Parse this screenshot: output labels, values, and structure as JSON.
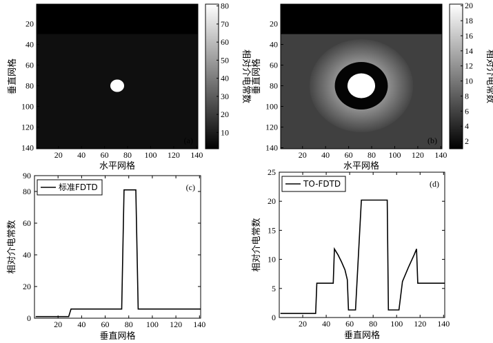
{
  "chart_data": [
    {
      "id": "a",
      "type": "heatmap",
      "panel_label": "(a)",
      "xlabel": "水平网格",
      "ylabel": "垂直网格",
      "colorbar_label": "相对介电常数",
      "xticks": [
        20,
        40,
        60,
        80,
        100,
        120,
        140
      ],
      "yticks": [
        20,
        40,
        60,
        80,
        100,
        120,
        140
      ],
      "xlim": [
        1,
        141
      ],
      "ylim": [
        1,
        141
      ],
      "clim": [
        1,
        81
      ],
      "colorbar_ticks": [
        10,
        20,
        30,
        40,
        50,
        60,
        70,
        80
      ],
      "regions": [
        {
          "shape": "rect",
          "x": [
            1,
            141
          ],
          "y": [
            1,
            30
          ],
          "value": 1
        },
        {
          "shape": "rect",
          "x": [
            1,
            141
          ],
          "y": [
            30,
            141
          ],
          "value": 5.8
        },
        {
          "shape": "circle",
          "cx": 71,
          "cy": 80,
          "r": 6,
          "value": 81
        }
      ]
    },
    {
      "id": "b",
      "type": "heatmap",
      "panel_label": "(b)",
      "xlabel": "水平网格",
      "ylabel": "垂直网格",
      "colorbar_label": "相对介电常数",
      "xticks": [
        20,
        40,
        60,
        80,
        100,
        120,
        140
      ],
      "yticks": [
        20,
        40,
        60,
        80,
        100,
        120,
        140
      ],
      "xlim": [
        1,
        141
      ],
      "ylim": [
        1,
        141
      ],
      "clim": [
        1,
        20.2
      ],
      "colorbar_ticks": [
        2,
        4,
        6,
        8,
        10,
        12,
        14,
        16,
        18,
        20
      ],
      "regions": [
        {
          "shape": "rect",
          "x": [
            1,
            141
          ],
          "y": [
            1,
            30
          ],
          "value": 1
        },
        {
          "shape": "rect",
          "x": [
            1,
            141
          ],
          "y": [
            30,
            141
          ],
          "value": 5.8
        },
        {
          "shape": "annulus",
          "cx": 71,
          "cy": 80,
          "r_inner": 23,
          "r_outer": 45,
          "value_inner": 11.8,
          "value_outer": 6.2
        },
        {
          "shape": "circle",
          "cx": 71,
          "cy": 80,
          "r": 23,
          "value": 1.3
        },
        {
          "shape": "circle",
          "cx": 71,
          "cy": 80,
          "r": 12,
          "value": 20.2
        }
      ]
    },
    {
      "id": "c",
      "type": "line",
      "panel_label": "(c)",
      "xlabel": "垂直网格",
      "ylabel": "相对介电常数",
      "xlim": [
        0,
        141
      ],
      "ylim": [
        0,
        90
      ],
      "xticks": [
        20,
        40,
        60,
        80,
        100,
        120,
        140
      ],
      "yticks": [
        0,
        20,
        40,
        60,
        80,
        90
      ],
      "legend": "标准FDTD",
      "series": [
        {
          "name": "标准FDTD",
          "x": [
            1,
            29,
            31,
            74,
            76,
            86,
            88,
            141
          ],
          "y": [
            1,
            1,
            5.8,
            5.8,
            81,
            81,
            5.8,
            5.8
          ]
        }
      ]
    },
    {
      "id": "d",
      "type": "line",
      "panel_label": "(d)",
      "xlabel": "垂直网格",
      "ylabel": "相对介电常数",
      "xlim": [
        0,
        141
      ],
      "ylim": [
        0,
        25
      ],
      "xticks": [
        20,
        40,
        60,
        80,
        100,
        120,
        140
      ],
      "yticks": [
        0,
        5,
        10,
        15,
        20,
        25
      ],
      "legend": "TO-FDTD",
      "series": [
        {
          "name": "TO-FDTD",
          "x": [
            1,
            31,
            32,
            46,
            47,
            50,
            53,
            56,
            58,
            59,
            64,
            65,
            70,
            92,
            93,
            98,
            99,
            102,
            105,
            110,
            115,
            117,
            118,
            141
          ],
          "y": [
            0.7,
            0.7,
            5.9,
            5.9,
            11.8,
            10.8,
            9.6,
            8.2,
            6.5,
            1.3,
            1.3,
            1.3,
            20.2,
            20.2,
            1.3,
            1.3,
            1.3,
            1.3,
            6.2,
            8.6,
            10.8,
            11.8,
            5.9,
            5.9
          ]
        }
      ]
    }
  ]
}
